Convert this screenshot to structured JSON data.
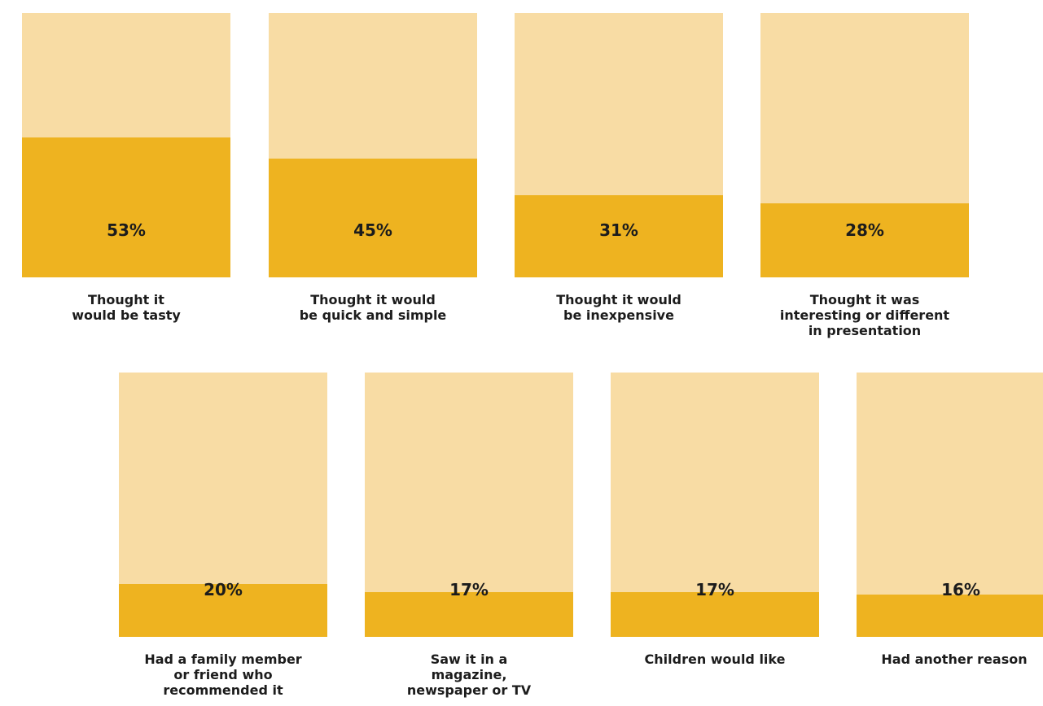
{
  "chart_data": {
    "type": "bar",
    "categories": [
      "Thought it\nwould be tasty",
      "Thought it would\nbe quick and simple",
      "Thought it would\nbe inexpensive",
      "Thought it was\ninteresting or different\nin presentation",
      "Had a family member\nor friend who\nrecommended it",
      "Saw it in a\nmagazine,\nnewspaper or TV",
      "Children would like",
      "Had another reason"
    ],
    "values": [
      53,
      45,
      31,
      28,
      20,
      17,
      17,
      16
    ],
    "value_labels": [
      "53%",
      "45%",
      "31%",
      "28%",
      "20%",
      "17%",
      "17%",
      "16%"
    ],
    "ylim": [
      0,
      100
    ],
    "title": "",
    "xlabel": "",
    "ylabel": ""
  },
  "colors": {
    "background_track": "#f8dca4",
    "fill": "#eeb320",
    "text": "#1c1c1c"
  }
}
